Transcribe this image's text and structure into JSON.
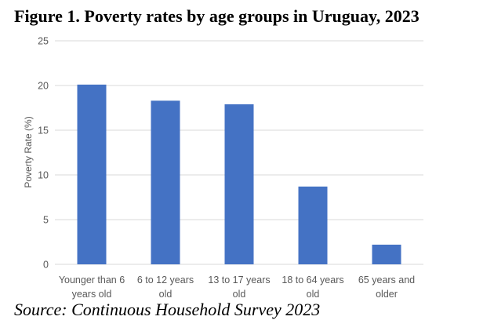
{
  "title": "Figure 1. Poverty rates by age groups in Uruguay, 2023",
  "source": "Source: Continuous Household Survey 2023",
  "chart_data": {
    "type": "bar",
    "title": "Figure 1. Poverty rates by age groups in Uruguay, 2023",
    "categories": [
      [
        "Younger than 6",
        "years old"
      ],
      [
        "6 to 12 years",
        "old"
      ],
      [
        "13 to 17 years",
        "old"
      ],
      [
        "18 to 64 years",
        "old"
      ],
      [
        "65 years and",
        "older"
      ]
    ],
    "values": [
      20.1,
      18.3,
      17.9,
      8.7,
      2.2
    ],
    "xlabel": "",
    "ylabel": "Poverty Rate (%)",
    "ylim": [
      0,
      25
    ],
    "yticks": [
      0,
      5,
      10,
      15,
      20,
      25
    ],
    "grid": true,
    "bar_color": "#4472C4",
    "grid_color": "#D9D9D9"
  }
}
